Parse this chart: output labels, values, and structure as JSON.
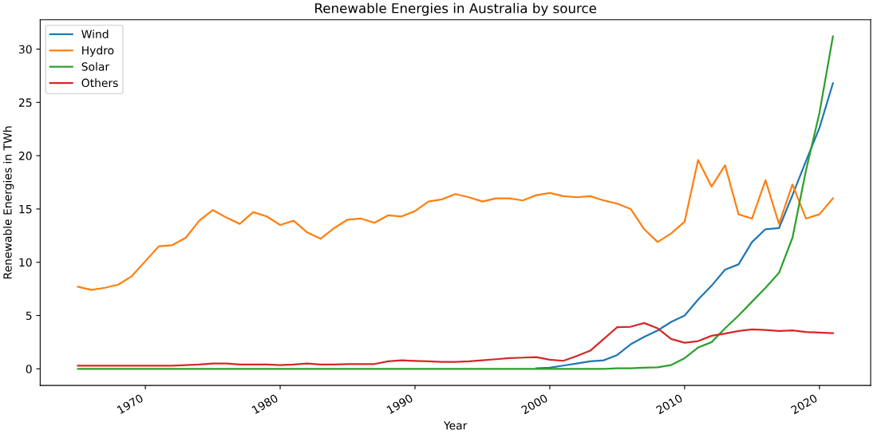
{
  "chart_data": {
    "type": "line",
    "title": "Renewable Energies in Australia by source",
    "xlabel": "Year",
    "ylabel": "Renewable Energies in TWh",
    "x": [
      1965,
      1966,
      1967,
      1968,
      1969,
      1970,
      1971,
      1972,
      1973,
      1974,
      1975,
      1976,
      1977,
      1978,
      1979,
      1980,
      1981,
      1982,
      1983,
      1984,
      1985,
      1986,
      1987,
      1988,
      1989,
      1990,
      1991,
      1992,
      1993,
      1994,
      1995,
      1996,
      1997,
      1998,
      1999,
      2000,
      2001,
      2002,
      2003,
      2004,
      2005,
      2006,
      2007,
      2008,
      2009,
      2010,
      2011,
      2012,
      2013,
      2014,
      2015,
      2016,
      2017,
      2018,
      2019,
      2020,
      2021
    ],
    "series": [
      {
        "name": "Wind",
        "color": "#1f77b4",
        "values": [
          null,
          null,
          null,
          null,
          null,
          null,
          null,
          null,
          null,
          null,
          null,
          null,
          null,
          null,
          null,
          null,
          null,
          null,
          null,
          null,
          null,
          null,
          null,
          null,
          null,
          null,
          null,
          null,
          null,
          null,
          null,
          null,
          null,
          null,
          0.05,
          0.1,
          0.3,
          0.5,
          0.7,
          0.8,
          1.3,
          2.3,
          3.0,
          3.6,
          4.4,
          5.0,
          6.5,
          7.8,
          9.3,
          9.8,
          11.9,
          13.1,
          13.2,
          16.3,
          19.5,
          22.6,
          26.8
        ]
      },
      {
        "name": "Hydro",
        "color": "#ff7f0e",
        "values": [
          7.7,
          7.4,
          7.6,
          7.9,
          8.7,
          10.1,
          11.5,
          11.6,
          12.3,
          13.9,
          14.9,
          14.2,
          13.6,
          14.7,
          14.3,
          13.5,
          13.9,
          12.8,
          12.2,
          13.2,
          14.0,
          14.1,
          13.7,
          14.4,
          14.3,
          14.8,
          15.7,
          15.9,
          16.4,
          16.1,
          15.7,
          16.0,
          16.0,
          15.8,
          16.3,
          16.5,
          16.2,
          16.1,
          16.2,
          15.8,
          15.5,
          15.0,
          13.1,
          11.9,
          12.7,
          13.8,
          19.6,
          17.1,
          19.1,
          14.5,
          14.1,
          17.7,
          13.6,
          17.3,
          14.1,
          14.5,
          16.0
        ]
      },
      {
        "name": "Solar",
        "color": "#2ca02c",
        "values": [
          0,
          0,
          0,
          0,
          0,
          0,
          0,
          0,
          0,
          0,
          0,
          0,
          0,
          0,
          0,
          0,
          0,
          0,
          0,
          0,
          0,
          0,
          0,
          0,
          0,
          0,
          0,
          0,
          0,
          0,
          0,
          0,
          0,
          0,
          0,
          0,
          0,
          0,
          0,
          0,
          0.05,
          0.05,
          0.1,
          0.15,
          0.35,
          1.0,
          2.0,
          2.5,
          3.8,
          5.0,
          6.3,
          7.6,
          9.0,
          12.3,
          18.6,
          24.0,
          31.2
        ]
      },
      {
        "name": "Others",
        "color": "#d62728",
        "values": [
          0.3,
          0.3,
          0.3,
          0.3,
          0.3,
          0.3,
          0.3,
          0.3,
          0.35,
          0.4,
          0.5,
          0.5,
          0.4,
          0.4,
          0.4,
          0.35,
          0.4,
          0.5,
          0.4,
          0.4,
          0.45,
          0.45,
          0.45,
          0.7,
          0.8,
          0.75,
          0.7,
          0.65,
          0.65,
          0.7,
          0.8,
          0.9,
          1.0,
          1.05,
          1.1,
          0.85,
          0.75,
          1.2,
          1.7,
          2.8,
          3.9,
          3.95,
          4.3,
          3.8,
          2.8,
          2.45,
          2.6,
          3.1,
          3.3,
          3.55,
          3.7,
          3.65,
          3.55,
          3.6,
          3.45,
          3.4,
          3.35
        ]
      }
    ],
    "xlim": [
      1962.2,
      2023.8
    ],
    "xticks": [
      1970,
      1980,
      1990,
      2000,
      2010,
      2020
    ],
    "ylim": [
      -1.56,
      32.76
    ],
    "yticks": [
      0,
      5,
      10,
      15,
      20,
      25,
      30
    ],
    "legend": "top left",
    "grid": false
  }
}
